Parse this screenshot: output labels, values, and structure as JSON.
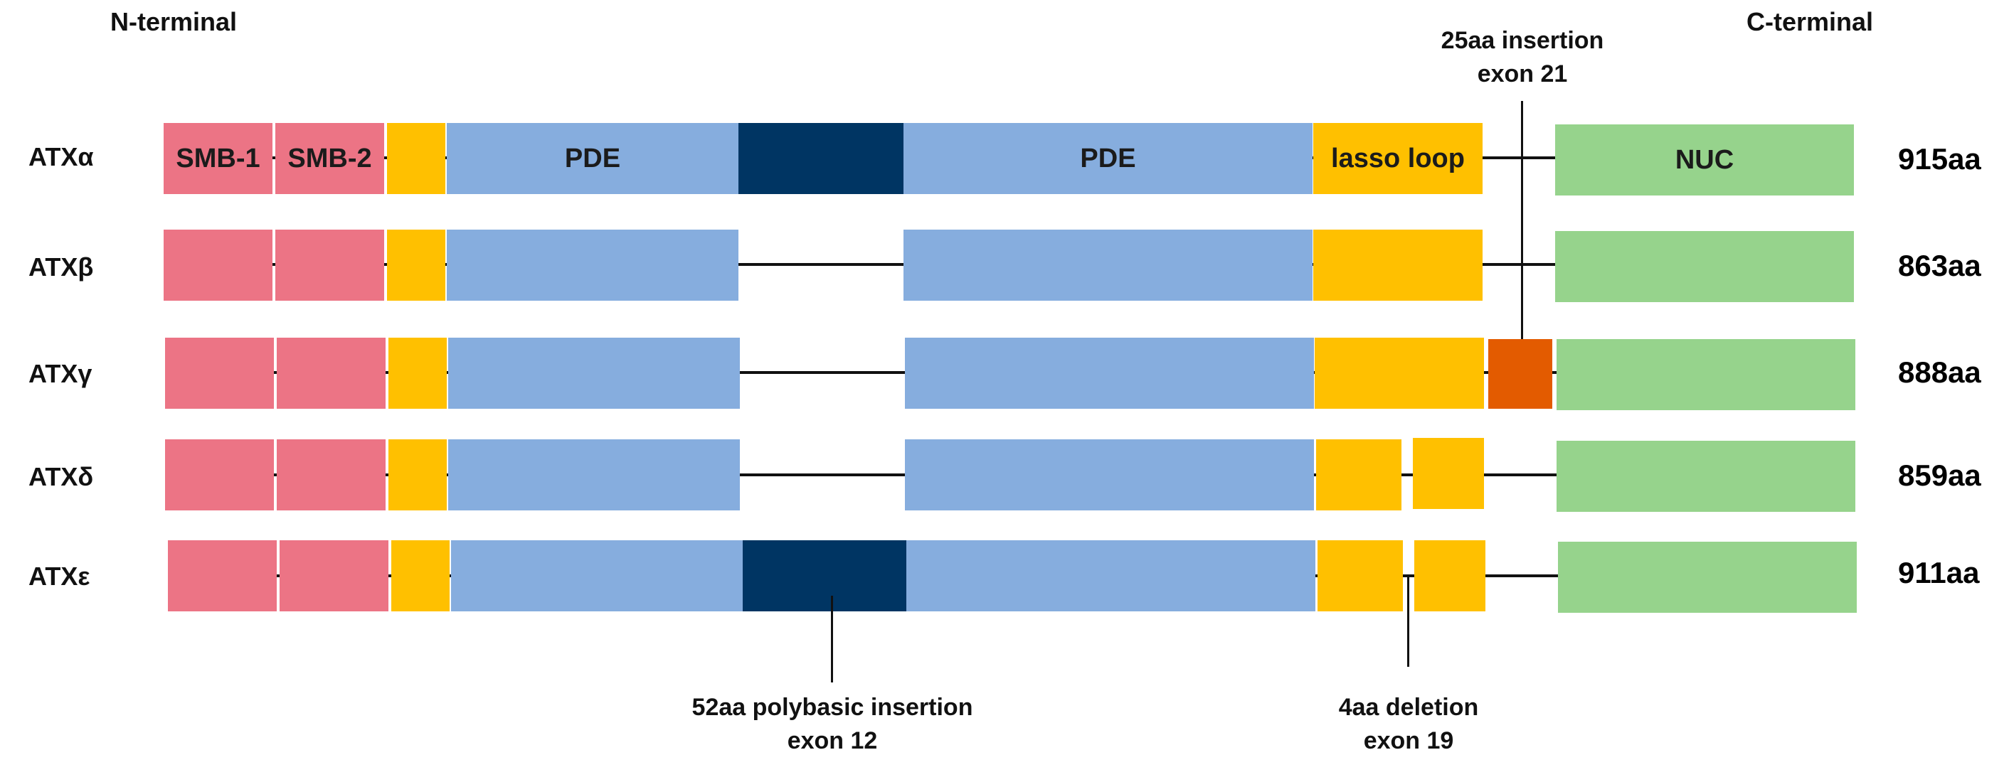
{
  "header": {
    "n_terminal": "N-terminal",
    "c_terminal": "C-terminal"
  },
  "colors": {
    "smb": "#EC7485",
    "yellow": "#FFC000",
    "pde": "#86ADDE",
    "dark": "#003563",
    "insert": "#E35B00",
    "nuc": "#96D38C"
  },
  "domains": {
    "smb1": "SMB-1",
    "smb2": "SMB-2",
    "pde": "PDE",
    "lasso": "lasso loop",
    "nuc": "NUC"
  },
  "isoforms": [
    {
      "name": "ATXα",
      "length": "915aa"
    },
    {
      "name": "ATXβ",
      "length": "863aa"
    },
    {
      "name": "ATXγ",
      "length": "888aa"
    },
    {
      "name": "ATXδ",
      "length": "859aa"
    },
    {
      "name": "ATXε",
      "length": "911aa"
    }
  ],
  "annotations": {
    "insertion25": {
      "line1": "25aa insertion",
      "line2": "exon 21"
    },
    "polybasic": {
      "line1": "52aa polybasic insertion",
      "line2": "exon 12"
    },
    "deletion": {
      "line1": "4aa deletion",
      "line2": "exon 19"
    }
  }
}
